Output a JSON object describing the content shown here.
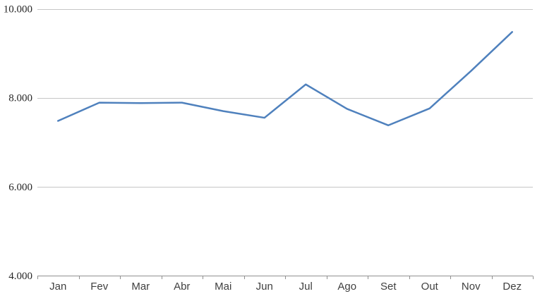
{
  "chart_data": {
    "type": "line",
    "title": "",
    "xlabel": "",
    "ylabel": "",
    "categories": [
      "Jan",
      "Fev",
      "Mar",
      "Abr",
      "Mai",
      "Jun",
      "Jul",
      "Ago",
      "Set",
      "Out",
      "Nov",
      "Dez"
    ],
    "series": [
      {
        "values": [
          7480,
          7890,
          7880,
          7890,
          7700,
          7550,
          8300,
          7750,
          7380,
          7760,
          8600,
          9480
        ]
      }
    ],
    "ylim": [
      4000,
      10000
    ],
    "yticks": [
      {
        "value": 10000,
        "label": "10.000"
      },
      {
        "value": 8000,
        "label": "8.000"
      },
      {
        "value": 6000,
        "label": "6.000"
      },
      {
        "value": 4000,
        "label": "4.000"
      }
    ],
    "grid": true,
    "legend": "none",
    "colors": {
      "background": "#FFFFFF",
      "line": "#4F81BD",
      "gridline": "#C6C6C6",
      "axis": "#909090",
      "ytick_text": "#262626",
      "xtick_text": "#404040"
    }
  }
}
